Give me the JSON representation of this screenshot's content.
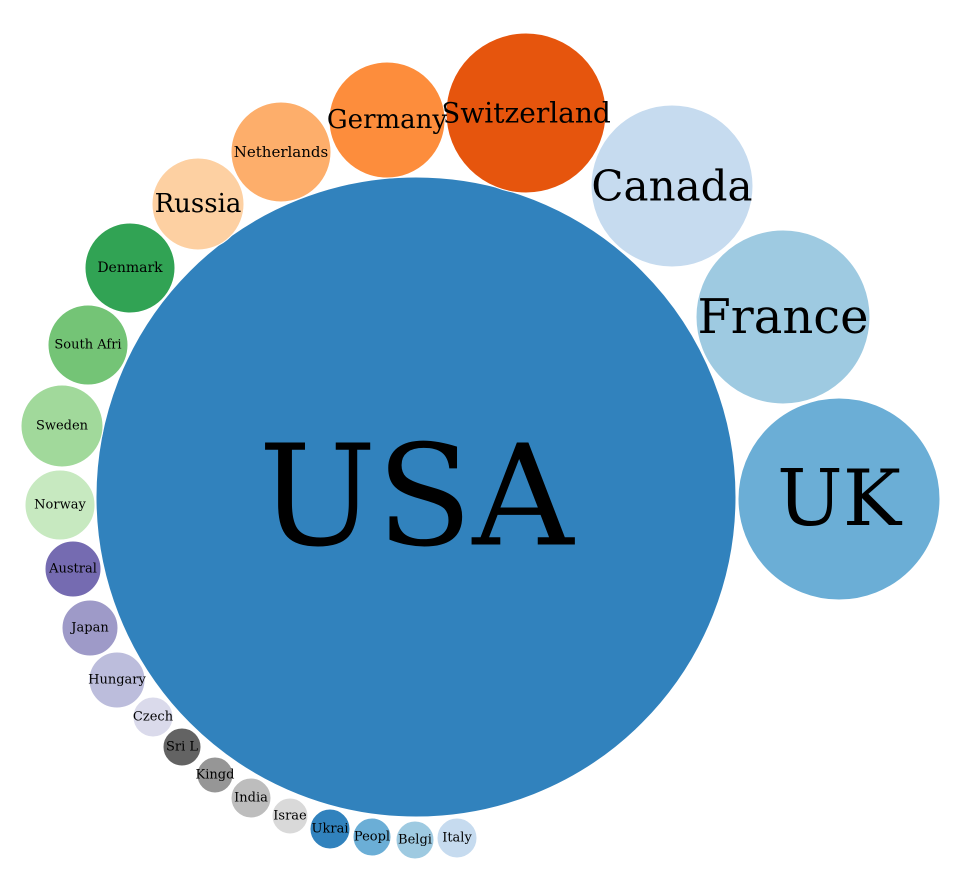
{
  "chart_data": {
    "type": "bubble",
    "title": "",
    "bubbles": [
      {
        "label": "USA",
        "color": "#3182bd"
      },
      {
        "label": "UK",
        "color": "#6baed6"
      },
      {
        "label": "France",
        "color": "#9ecae1"
      },
      {
        "label": "Canada",
        "color": "#c6dbef"
      },
      {
        "label": "Switzerland",
        "color": "#e6550d"
      },
      {
        "label": "Germany",
        "color": "#fd8d3c"
      },
      {
        "label": "Netherlands",
        "color": "#fdae6b"
      },
      {
        "label": "Russia",
        "color": "#fdd0a2"
      },
      {
        "label": "Denmark",
        "color": "#31a354"
      },
      {
        "label": "South Afri",
        "color": "#74c476"
      },
      {
        "label": "Sweden",
        "color": "#a1d99b"
      },
      {
        "label": "Norway",
        "color": "#c7e9c0"
      },
      {
        "label": "Austral",
        "color": "#756bb1"
      },
      {
        "label": "Japan",
        "color": "#9e9ac8"
      },
      {
        "label": "Hungary",
        "color": "#bcbddc"
      },
      {
        "label": "Czech",
        "color": "#dadaeb"
      },
      {
        "label": "Sri L",
        "color": "#636363"
      },
      {
        "label": "Kingd",
        "color": "#969696"
      },
      {
        "label": "India",
        "color": "#bdbdbd"
      },
      {
        "label": "Israe",
        "color": "#d9d9d9"
      },
      {
        "label": "Ukrai",
        "color": "#3182bd"
      },
      {
        "label": "Peopl",
        "color": "#6baed6"
      },
      {
        "label": "Belgi",
        "color": "#9ecae1"
      },
      {
        "label": "Italy",
        "color": "#c6dbef"
      }
    ]
  }
}
